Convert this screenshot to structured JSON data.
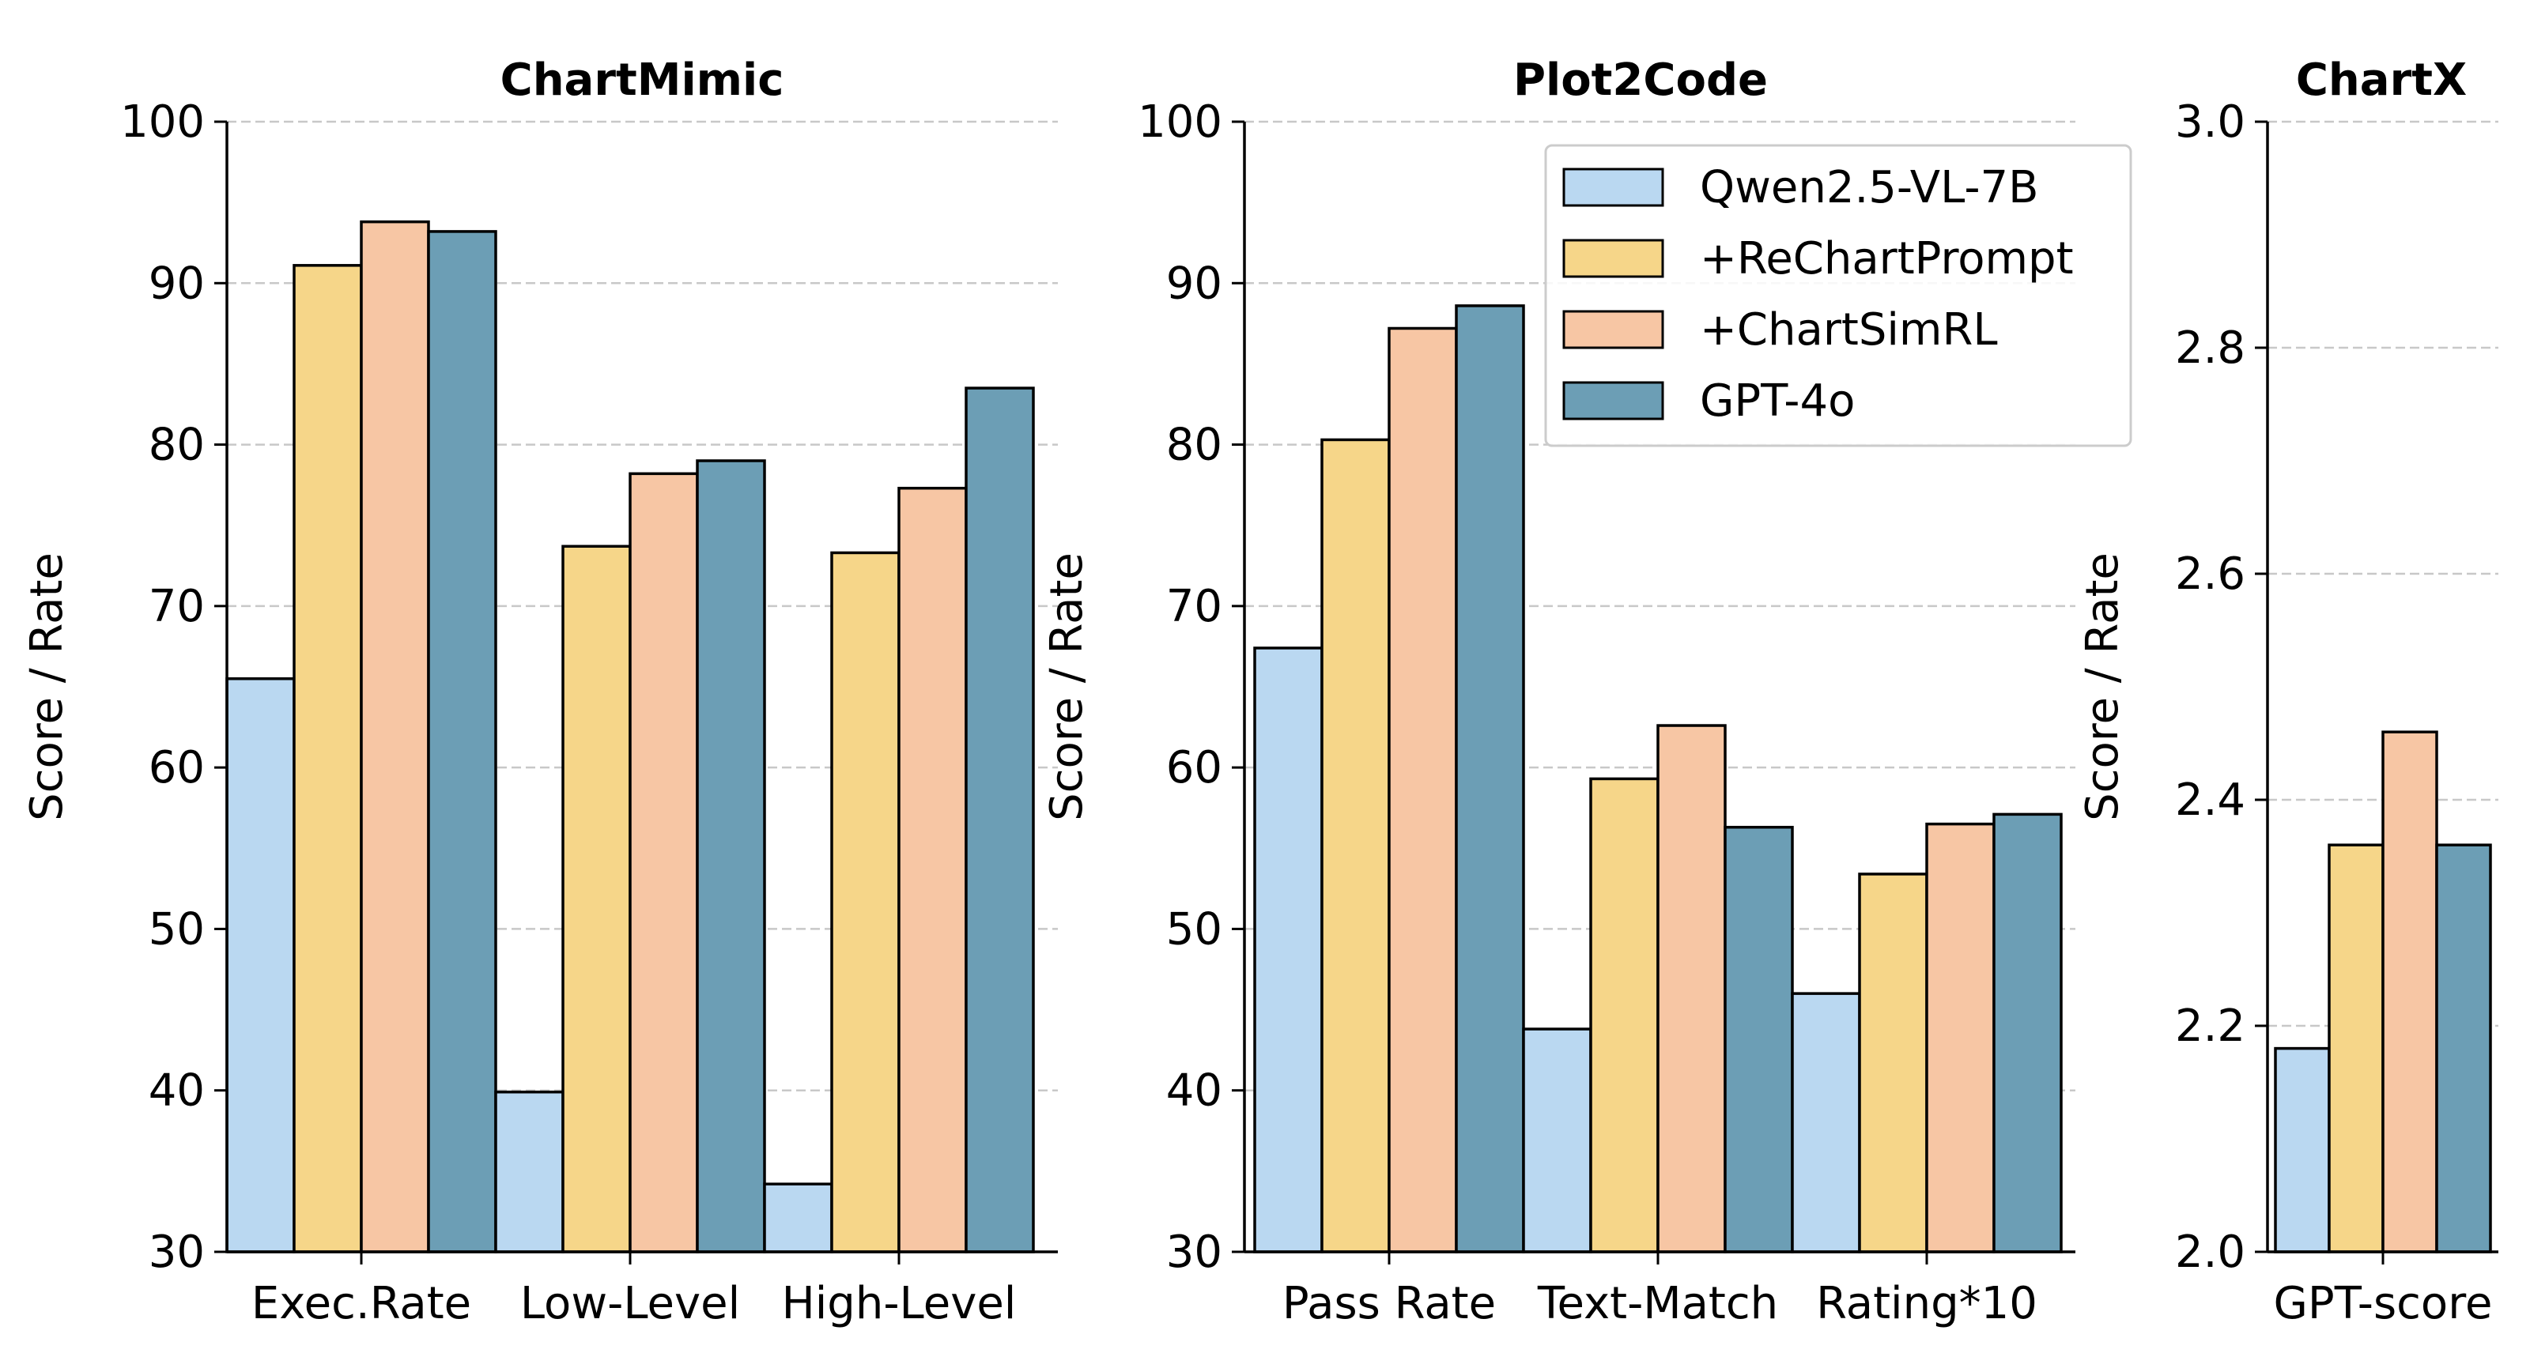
{
  "legend": [
    "Qwen2.5-VL-7B",
    "+ReChartPrompt",
    "+ChartSimRL",
    "GPT-4o"
  ],
  "colors": [
    "#bad8f1",
    "#f6d689",
    "#f7c6a4",
    "#6c9eb5"
  ],
  "chart_data": [
    {
      "type": "bar",
      "title": "ChartMimic",
      "ylabel": "Score / Rate",
      "ylim": [
        30,
        100
      ],
      "yticks": [
        "30",
        "40",
        "50",
        "60",
        "70",
        "80",
        "90",
        "100"
      ],
      "categories": [
        "Exec.Rate",
        "Low-Level",
        "High-Level"
      ],
      "series": [
        {
          "name": "Qwen2.5-VL-7B",
          "values": [
            65.5,
            39.9,
            34.2
          ]
        },
        {
          "name": "+ReChartPrompt",
          "values": [
            91.1,
            73.7,
            73.3
          ]
        },
        {
          "name": "+ChartSimRL",
          "values": [
            93.8,
            78.2,
            77.3
          ]
        },
        {
          "name": "GPT-4o",
          "values": [
            93.2,
            79.0,
            83.5
          ]
        }
      ],
      "grid": "y-dashed",
      "legend": "none"
    },
    {
      "type": "bar",
      "title": "Plot2Code",
      "ylabel": "Score / Rate",
      "ylim": [
        30,
        100
      ],
      "yticks": [
        "30",
        "40",
        "50",
        "60",
        "70",
        "80",
        "90",
        "100"
      ],
      "categories": [
        "Pass Rate",
        "Text-Match",
        "Rating*10"
      ],
      "series": [
        {
          "name": "Qwen2.5-VL-7B",
          "values": [
            67.4,
            43.8,
            46.0
          ]
        },
        {
          "name": "+ReChartPrompt",
          "values": [
            80.3,
            59.3,
            53.4
          ]
        },
        {
          "name": "+ChartSimRL",
          "values": [
            87.2,
            62.6,
            56.5
          ]
        },
        {
          "name": "GPT-4o",
          "values": [
            88.6,
            56.3,
            57.1
          ]
        }
      ],
      "grid": "y-dashed",
      "legend": "top-right"
    },
    {
      "type": "bar",
      "title": "ChartX",
      "ylabel": "Score / Rate",
      "ylim": [
        2.0,
        3.0
      ],
      "yticks": [
        "2.0",
        "2.2",
        "2.4",
        "2.6",
        "2.8",
        "3.0"
      ],
      "categories": [
        "GPT-score"
      ],
      "series": [
        {
          "name": "Qwen2.5-VL-7B",
          "values": [
            2.18
          ]
        },
        {
          "name": "+ReChartPrompt",
          "values": [
            2.36
          ]
        },
        {
          "name": "+ChartSimRL",
          "values": [
            2.46
          ]
        },
        {
          "name": "GPT-4o",
          "values": [
            2.36
          ]
        }
      ],
      "grid": "y-dashed",
      "legend": "none"
    }
  ]
}
